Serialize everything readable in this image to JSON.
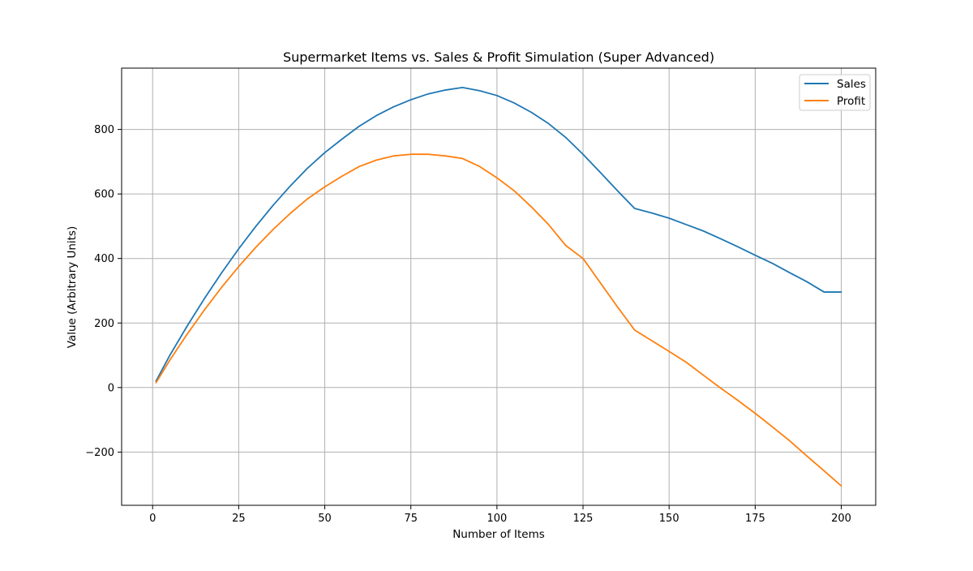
{
  "chart_data": {
    "type": "line",
    "title": "Supermarket Items vs. Sales & Profit Simulation (Super Advanced)",
    "xlabel": "Number of Items",
    "ylabel": "Value (Arbitrary Units)",
    "xlim": [
      -9,
      210
    ],
    "ylim": [
      -365,
      990
    ],
    "xticks": [
      0,
      25,
      50,
      75,
      100,
      125,
      150,
      175,
      200
    ],
    "yticks": [
      -200,
      0,
      200,
      400,
      600,
      800
    ],
    "grid": true,
    "legend_position": "top-right",
    "colors": {
      "sales": "#1f77b4",
      "profit": "#ff7f0e",
      "grid": "#b0b0b0",
      "axes": "#000000"
    },
    "series": [
      {
        "name": "Sales",
        "color": "#1f77b4",
        "x": [
          1,
          5,
          10,
          15,
          20,
          25,
          30,
          35,
          40,
          45,
          50,
          55,
          60,
          65,
          70,
          75,
          80,
          85,
          90,
          95,
          100,
          105,
          110,
          115,
          120,
          125,
          130,
          135,
          140,
          145,
          150,
          155,
          160,
          165,
          170,
          175,
          180,
          185,
          190,
          195,
          200
        ],
        "y": [
          20,
          100,
          190,
          275,
          355,
          430,
          500,
          565,
          625,
          680,
          728,
          770,
          810,
          843,
          870,
          892,
          910,
          922,
          930,
          920,
          905,
          882,
          853,
          818,
          775,
          723,
          667,
          610,
          555,
          541,
          525,
          505,
          485,
          461,
          436,
          410,
          385,
          356,
          328,
          296,
          296
        ]
      },
      {
        "name": "Profit",
        "color": "#ff7f0e",
        "x": [
          1,
          5,
          10,
          15,
          20,
          25,
          30,
          35,
          40,
          45,
          50,
          55,
          60,
          65,
          70,
          75,
          80,
          85,
          90,
          95,
          100,
          105,
          110,
          115,
          120,
          125,
          130,
          135,
          140,
          145,
          150,
          155,
          160,
          165,
          170,
          175,
          180,
          185,
          190,
          195,
          200
        ],
        "y": [
          15,
          85,
          165,
          240,
          310,
          375,
          435,
          490,
          540,
          585,
          622,
          655,
          685,
          705,
          718,
          723,
          723,
          718,
          710,
          685,
          650,
          610,
          560,
          505,
          440,
          400,
          325,
          250,
          178,
          145,
          112,
          78,
          38,
          -2,
          -40,
          -80,
          -122,
          -165,
          -212,
          -258,
          -305
        ]
      }
    ]
  }
}
